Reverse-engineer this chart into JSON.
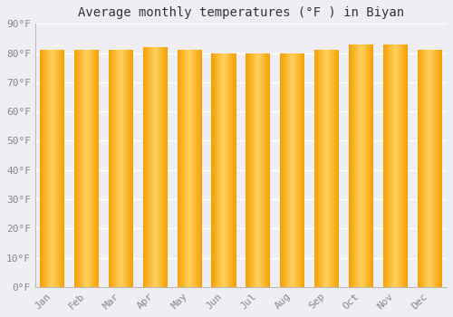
{
  "title": "Average monthly temperatures (°F ) in Biyan",
  "months": [
    "Jan",
    "Feb",
    "Mar",
    "Apr",
    "May",
    "Jun",
    "Jul",
    "Aug",
    "Sep",
    "Oct",
    "Nov",
    "Dec"
  ],
  "values": [
    81,
    81,
    81,
    82,
    81,
    80,
    80,
    80,
    81,
    83,
    83,
    81
  ],
  "bar_color_main": "#FFA500",
  "bar_color_light": "#FFD060",
  "background_color": "#EEEEF4",
  "grid_color": "#FFFFFF",
  "yticks": [
    0,
    10,
    20,
    30,
    40,
    50,
    60,
    70,
    80,
    90
  ],
  "ylim": [
    0,
    90
  ],
  "title_fontsize": 10,
  "tick_fontsize": 8,
  "tick_color": "#888888",
  "font_family": "monospace"
}
